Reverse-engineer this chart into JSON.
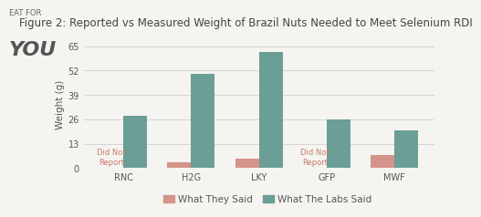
{
  "categories": [
    "RNC",
    "H2G",
    "LKY",
    "GFP",
    "MWF"
  ],
  "they_said": [
    0,
    3,
    5,
    0,
    7
  ],
  "labs_said": [
    28,
    50,
    62,
    26,
    20
  ],
  "color_they": "#d4948a",
  "color_labs": "#6b9e96",
  "color_dnr_text": "#c97a6e",
  "title": "Figure 2: Reported vs Measured Weight of Brazil Nuts Needed to Meet Selenium RDI",
  "ylabel": "Weight (g)",
  "yticks": [
    0,
    13,
    26,
    39,
    52,
    65
  ],
  "ylim": [
    0,
    68
  ],
  "legend_they": "What They Said",
  "legend_labs": "What The Labs Said",
  "logo_line1": "EAT FOR",
  "logo_line2": "YOU",
  "bar_width": 0.35,
  "bg_color": "#f5f4f0",
  "grid_color": "#d0d0d0",
  "title_fontsize": 8.5,
  "axis_fontsize": 7.5,
  "tick_fontsize": 7,
  "legend_fontsize": 7.5,
  "dnr_fontsize": 6.0
}
